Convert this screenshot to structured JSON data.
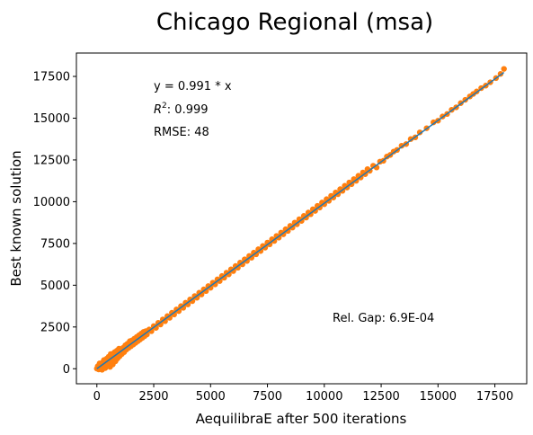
{
  "chart_data": {
    "type": "scatter",
    "title": "Chicago Regional (msa)",
    "xlabel": "AequilibraE after 500 iterations",
    "ylabel": "Best known solution",
    "xlim": [
      -900,
      18900
    ],
    "ylim": [
      -900,
      18900
    ],
    "xticks": [
      0,
      2500,
      5000,
      7500,
      10000,
      12500,
      15000,
      17500
    ],
    "yticks": [
      0,
      2500,
      5000,
      7500,
      10000,
      12500,
      15000,
      17500
    ],
    "xtick_labels": [
      "0",
      "2500",
      "5000",
      "7500",
      "10000",
      "12500",
      "15000",
      "17500"
    ],
    "ytick_labels": [
      "0",
      "2500",
      "5000",
      "7500",
      "10000",
      "12500",
      "15000",
      "17500"
    ],
    "grid": false,
    "annotations": {
      "equation": "y = 0.991 * x",
      "r2_label": "R",
      "r2_sup": "2",
      "r2_value": ":  0.999",
      "rmse": "RMSE: 48",
      "rel_gap": "Rel. Gap: 6.9E-04"
    },
    "colors": {
      "points": "#ff7f0e",
      "fit_line": "#1f77b4"
    },
    "fit_line": {
      "slope": 0.991,
      "x_range": [
        0,
        17900
      ]
    },
    "series": [
      {
        "name": "",
        "color": "#ff7f0e",
        "points": [
          [
            0,
            10
          ],
          [
            40,
            150
          ],
          [
            80,
            -40
          ],
          [
            120,
            320
          ],
          [
            160,
            60
          ],
          [
            200,
            210
          ],
          [
            230,
            -60
          ],
          [
            260,
            380
          ],
          [
            290,
            120
          ],
          [
            310,
            520
          ],
          [
            340,
            250
          ],
          [
            370,
            40
          ],
          [
            400,
            430
          ],
          [
            430,
            600
          ],
          [
            460,
            210
          ],
          [
            490,
            330
          ],
          [
            520,
            720
          ],
          [
            550,
            480
          ],
          [
            580,
            110
          ],
          [
            610,
            880
          ],
          [
            640,
            560
          ],
          [
            670,
            700
          ],
          [
            700,
            260
          ],
          [
            730,
            920
          ],
          [
            760,
            640
          ],
          [
            790,
            1000
          ],
          [
            820,
            450
          ],
          [
            850,
            780
          ],
          [
            880,
            1080
          ],
          [
            910,
            620
          ],
          [
            940,
            900
          ],
          [
            970,
            1200
          ],
          [
            1000,
            750
          ],
          [
            1050,
            1100
          ],
          [
            1100,
            880
          ],
          [
            1150,
            1250
          ],
          [
            1200,
            1000
          ],
          [
            1250,
            1400
          ],
          [
            1300,
            1150
          ],
          [
            1350,
            1500
          ],
          [
            1400,
            1250
          ],
          [
            1450,
            1650
          ],
          [
            1500,
            1350
          ],
          [
            1550,
            1700
          ],
          [
            1600,
            1450
          ],
          [
            1650,
            1800
          ],
          [
            1700,
            1550
          ],
          [
            1750,
            1900
          ],
          [
            1800,
            1650
          ],
          [
            1850,
            2000
          ],
          [
            1900,
            1750
          ],
          [
            1950,
            2100
          ],
          [
            2000,
            1850
          ],
          [
            2050,
            2200
          ],
          [
            2100,
            1950
          ],
          [
            2150,
            2250
          ],
          [
            2200,
            2050
          ],
          [
            2300,
            2350
          ],
          [
            2400,
            2250
          ],
          [
            2500,
            2550
          ],
          [
            2600,
            2450
          ],
          [
            2700,
            2750
          ],
          [
            2800,
            2650
          ],
          [
            2900,
            2950
          ],
          [
            3000,
            2850
          ],
          [
            3100,
            3150
          ],
          [
            3200,
            3050
          ],
          [
            3300,
            3350
          ],
          [
            3400,
            3250
          ],
          [
            3500,
            3550
          ],
          [
            3600,
            3450
          ],
          [
            3700,
            3750
          ],
          [
            3800,
            3650
          ],
          [
            3900,
            3950
          ],
          [
            4000,
            3850
          ],
          [
            4100,
            4150
          ],
          [
            4200,
            4050
          ],
          [
            4300,
            4350
          ],
          [
            4400,
            4250
          ],
          [
            4500,
            4550
          ],
          [
            4600,
            4450
          ],
          [
            4700,
            4750
          ],
          [
            4800,
            4650
          ],
          [
            4900,
            4950
          ],
          [
            5000,
            4850
          ],
          [
            5100,
            5150
          ],
          [
            5200,
            5050
          ],
          [
            5300,
            5350
          ],
          [
            5400,
            5250
          ],
          [
            5500,
            5550
          ],
          [
            5600,
            5450
          ],
          [
            5700,
            5750
          ],
          [
            5800,
            5650
          ],
          [
            5900,
            5950
          ],
          [
            6000,
            5850
          ],
          [
            6100,
            6150
          ],
          [
            6200,
            6050
          ],
          [
            6300,
            6350
          ],
          [
            6400,
            6250
          ],
          [
            6500,
            6550
          ],
          [
            6600,
            6450
          ],
          [
            6700,
            6750
          ],
          [
            6800,
            6650
          ],
          [
            6900,
            6950
          ],
          [
            7000,
            6850
          ],
          [
            7100,
            7150
          ],
          [
            7200,
            7050
          ],
          [
            7300,
            7350
          ],
          [
            7400,
            7250
          ],
          [
            7500,
            7550
          ],
          [
            7600,
            7450
          ],
          [
            7700,
            7750
          ],
          [
            7800,
            7650
          ],
          [
            7900,
            7950
          ],
          [
            8000,
            7850
          ],
          [
            8100,
            8150
          ],
          [
            8200,
            8050
          ],
          [
            8300,
            8350
          ],
          [
            8400,
            8250
          ],
          [
            8500,
            8550
          ],
          [
            8600,
            8450
          ],
          [
            8700,
            8750
          ],
          [
            8800,
            8650
          ],
          [
            8900,
            8950
          ],
          [
            9000,
            8850
          ],
          [
            9100,
            9150
          ],
          [
            9200,
            9050
          ],
          [
            9300,
            9350
          ],
          [
            9400,
            9250
          ],
          [
            9500,
            9550
          ],
          [
            9600,
            9450
          ],
          [
            9700,
            9750
          ],
          [
            9800,
            9650
          ],
          [
            9900,
            9950
          ],
          [
            10000,
            9850
          ],
          [
            10100,
            10150
          ],
          [
            10200,
            10050
          ],
          [
            10300,
            10350
          ],
          [
            10400,
            10250
          ],
          [
            10500,
            10550
          ],
          [
            10600,
            10450
          ],
          [
            10700,
            10750
          ],
          [
            10800,
            10650
          ],
          [
            10900,
            10950
          ],
          [
            11000,
            10850
          ],
          [
            11100,
            11150
          ],
          [
            11200,
            11050
          ],
          [
            11300,
            11350
          ],
          [
            11400,
            11250
          ],
          [
            11500,
            11550
          ],
          [
            11600,
            11450
          ],
          [
            11700,
            11750
          ],
          [
            11800,
            11650
          ],
          [
            11900,
            11950
          ],
          [
            12000,
            11850
          ],
          [
            12150,
            12150
          ],
          [
            12300,
            12050
          ],
          [
            12450,
            12400
          ],
          [
            12600,
            12450
          ],
          [
            12750,
            12700
          ],
          [
            12900,
            12800
          ],
          [
            13050,
            13000
          ],
          [
            13200,
            13100
          ],
          [
            13400,
            13350
          ],
          [
            13600,
            13450
          ],
          [
            13800,
            13750
          ],
          [
            14000,
            13850
          ],
          [
            14200,
            14150
          ],
          [
            14500,
            14400
          ],
          [
            14800,
            14750
          ],
          [
            15000,
            14850
          ],
          [
            15200,
            15100
          ],
          [
            15400,
            15250
          ],
          [
            15600,
            15500
          ],
          [
            15800,
            15650
          ],
          [
            16000,
            15900
          ],
          [
            16200,
            16100
          ],
          [
            16400,
            16300
          ],
          [
            16550,
            16450
          ],
          [
            16700,
            16600
          ],
          [
            16900,
            16800
          ],
          [
            17100,
            16950
          ],
          [
            17300,
            17150
          ],
          [
            17550,
            17400
          ],
          [
            17750,
            17650
          ],
          [
            17900,
            17950
          ]
        ]
      }
    ]
  }
}
